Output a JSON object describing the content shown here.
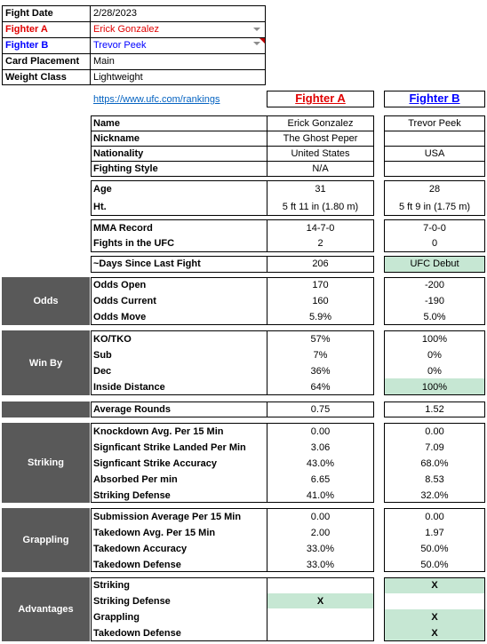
{
  "top_info": {
    "fight_date_label": "Fight Date",
    "fight_date": "2/28/2023",
    "fighter_a_label": "Fighter A",
    "fighter_a": "Erick Gonzalez",
    "fighter_b_label": "Fighter B",
    "fighter_b": "Trevor Peek",
    "card_label": "Card Placement",
    "card": "Main",
    "weight_label": "Weight Class",
    "weight": "Lightweight"
  },
  "link": "https://www.ufc.com/rankings",
  "headers": {
    "a": "Fighter A",
    "b": "Fighter B"
  },
  "profile": {
    "name_label": "Name",
    "name_a": "Erick Gonzalez",
    "name_b": "Trevor Peek",
    "nick_label": "Nickname",
    "nick_a": "The Ghost Peper",
    "nick_b": "",
    "nat_label": "Nationality",
    "nat_a": "United States",
    "nat_b": "USA",
    "style_label": "Fighting Style",
    "style_a": "N/A",
    "style_b": ""
  },
  "physical": {
    "age_label": "Age",
    "age_a": "31",
    "age_b": "28",
    "ht_label": "Ht.",
    "ht_a": "5 ft 11 in (1.80 m)",
    "ht_b": "5 ft 9 in (1.75 m)"
  },
  "record": {
    "mma_label": "MMA Record",
    "mma_a": "14-7-0",
    "mma_b": "7-0-0",
    "ufc_label": "Fights in the UFC",
    "ufc_a": "2",
    "ufc_b": "0"
  },
  "last_fight": {
    "label": "~Days Since Last Fight",
    "a": "206",
    "b": "UFC Debut"
  },
  "odds": {
    "section": "Odds",
    "open_label": "Odds Open",
    "open_a": "170",
    "open_b": "-200",
    "current_label": "Odds Current",
    "current_a": "160",
    "current_b": "-190",
    "move_label": "Odds Move",
    "move_a": "5.9%",
    "move_b": "5.0%"
  },
  "win_by": {
    "section": "Win By",
    "ko_label": "KO/TKO",
    "ko_a": "57%",
    "ko_b": "100%",
    "sub_label": "Sub",
    "sub_a": "7%",
    "sub_b": "0%",
    "dec_label": "Dec",
    "dec_a": "36%",
    "dec_b": "0%",
    "inside_label": "Inside Distance",
    "inside_a": "64%",
    "inside_b": "100%"
  },
  "avg_rounds": {
    "label": "Average Rounds",
    "a": "0.75",
    "b": "1.52"
  },
  "striking": {
    "section": "Striking",
    "kd_label": "Knockdown Avg. Per 15 Min",
    "kd_a": "0.00",
    "kd_b": "0.00",
    "ssl_label": "Signficant Strike Landed Per Min",
    "ssl_a": "3.06",
    "ssl_b": "7.09",
    "ssa_label": "Signficant Strike Accuracy",
    "ssa_a": "43.0%",
    "ssa_b": "68.0%",
    "abs_label": "Absorbed Per min",
    "abs_a": "6.65",
    "abs_b": "8.53",
    "def_label": "Striking Defense",
    "def_a": "41.0%",
    "def_b": "32.0%"
  },
  "grappling": {
    "section": "Grappling",
    "sub_label": "Submission Average  Per 15 Min",
    "sub_a": "0.00",
    "sub_b": "0.00",
    "td_label": "Takedown Avg. Per 15 Min",
    "td_a": "2.00",
    "td_b": "1.97",
    "tda_label": "Takedown Accuracy",
    "tda_a": "33.0%",
    "tda_b": "50.0%",
    "tdd_label": "Takedown Defense",
    "tdd_a": "33.0%",
    "tdd_b": "50.0%"
  },
  "advantages": {
    "section": "Advantages",
    "striking_label": "Striking",
    "striking_a": "",
    "striking_b": "X",
    "sdef_label": "Striking Defense",
    "sdef_a": "X",
    "sdef_b": "",
    "grap_label": "Grappling",
    "grap_a": "",
    "grap_b": "X",
    "tdd_label": "Takedown Defense",
    "tdd_a": "",
    "tdd_b": "X"
  },
  "colors": {
    "fighter_a": "#e00000",
    "fighter_b": "#0000ff",
    "highlight": "#c6e7d3",
    "section_bg": "#595959",
    "link": "#0563c1"
  },
  "icons": {
    "dropdown": "chevron-down-icon",
    "comment": "comment-indicator-icon"
  }
}
